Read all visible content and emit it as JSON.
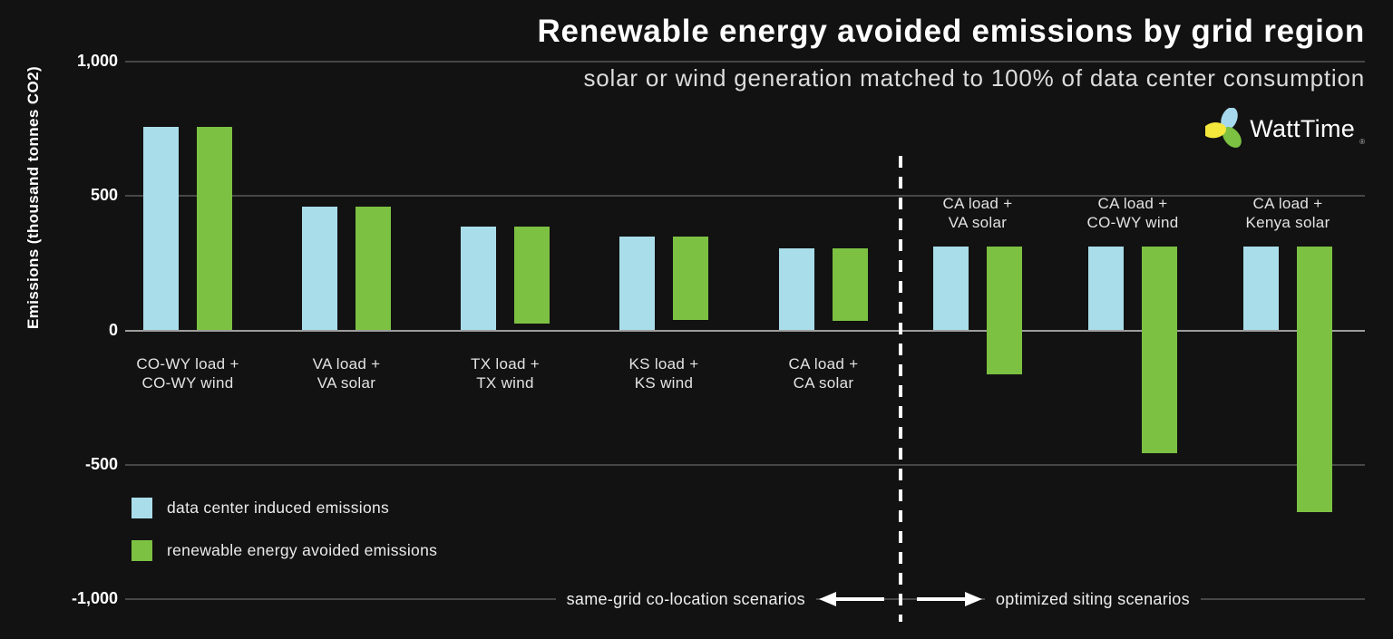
{
  "header": {
    "title": "Renewable energy avoided emissions by grid region",
    "subtitle": "solar or wind generation matched to 100% of data center consumption"
  },
  "logo": {
    "text": "WattTime",
    "colors": {
      "blue": "#a6d9ee",
      "green": "#7cc142",
      "yellow": "#f5e83d"
    }
  },
  "chart_data": {
    "type": "bar",
    "title": "Renewable energy avoided emissions by grid region",
    "subtitle": "solar or wind generation matched to 100% of data center consumption",
    "ylabel": "Emissions (thousand tonnes CO2)",
    "units": "thousand tonnes CO2",
    "ylim": [
      -1000,
      1000
    ],
    "yticks": [
      1000,
      500,
      0,
      -500,
      -1000
    ],
    "ytick_labels": [
      "1,000",
      "500",
      "0",
      "-500",
      "-1,000"
    ],
    "grid": "horizontal gridlines, zero line emphasized",
    "legend_position": "bottom-left",
    "colors": {
      "induced": "#a9dde9",
      "avoided": "#7cc142"
    },
    "legend": [
      {
        "key": "induced",
        "label": "data center induced emissions",
        "color": "#a9dde9"
      },
      {
        "key": "avoided",
        "label": "renewable energy avoided emissions",
        "color": "#7cc142"
      }
    ],
    "sections": [
      {
        "name": "same-grid co-location scenarios",
        "scenario_indexes": [
          0,
          1,
          2,
          3,
          4
        ]
      },
      {
        "name": "optimized siting scenarios",
        "scenario_indexes": [
          5,
          6,
          7
        ]
      }
    ],
    "scenarios": [
      {
        "label_lines": [
          "CO-WY load +",
          "CO-WY wind"
        ],
        "section": "same-grid co-location scenarios",
        "label_position": "below",
        "induced_span": [
          0,
          755
        ],
        "avoided_span": [
          0,
          755
        ]
      },
      {
        "label_lines": [
          "VA load +",
          "VA solar"
        ],
        "section": "same-grid co-location scenarios",
        "label_position": "below",
        "induced_span": [
          0,
          460
        ],
        "avoided_span": [
          0,
          460
        ]
      },
      {
        "label_lines": [
          "TX load +",
          "TX wind"
        ],
        "section": "same-grid co-location scenarios",
        "label_position": "below",
        "induced_span": [
          0,
          385
        ],
        "avoided_span": [
          25,
          385
        ]
      },
      {
        "label_lines": [
          "KS load +",
          "KS wind"
        ],
        "section": "same-grid co-location scenarios",
        "label_position": "below",
        "induced_span": [
          0,
          350
        ],
        "avoided_span": [
          40,
          350
        ]
      },
      {
        "label_lines": [
          "CA load +",
          "CA solar"
        ],
        "section": "same-grid co-location scenarios",
        "label_position": "below",
        "induced_span": [
          0,
          305
        ],
        "avoided_span": [
          35,
          305
        ]
      },
      {
        "label_lines": [
          "CA load +",
          "VA solar"
        ],
        "section": "optimized siting scenarios",
        "label_position": "above",
        "induced_span": [
          0,
          310
        ],
        "avoided_span": [
          -165,
          310
        ]
      },
      {
        "label_lines": [
          "CA load +",
          "CO-WY wind"
        ],
        "section": "optimized siting scenarios",
        "label_position": "above",
        "induced_span": [
          0,
          310
        ],
        "avoided_span": [
          -455,
          310
        ]
      },
      {
        "label_lines": [
          "CA load +",
          "Kenya solar"
        ],
        "section": "optimized siting scenarios",
        "label_position": "above",
        "induced_span": [
          0,
          310
        ],
        "avoided_span": [
          -675,
          310
        ]
      }
    ]
  }
}
